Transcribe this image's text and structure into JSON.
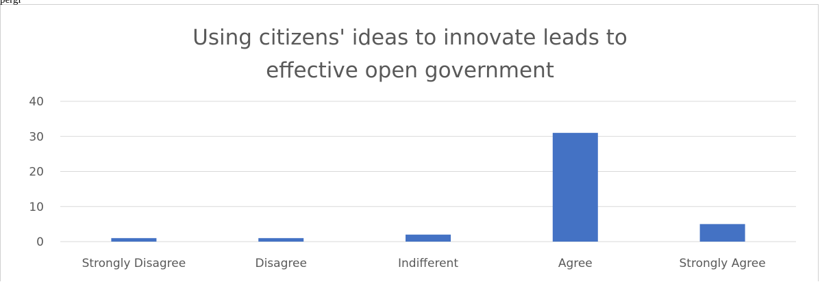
{
  "page_top_text": "         pergi",
  "chart_data": {
    "type": "bar",
    "title": "Using citizens' ideas to innovate leads to effective open government",
    "title_lines": [
      "Using citizens' ideas to innovate leads to",
      "effective open government"
    ],
    "categories": [
      "Strongly Disagree",
      "Disagree",
      "Indifferent",
      "Agree",
      "Strongly Agree"
    ],
    "values": [
      1,
      1,
      2,
      31,
      5
    ],
    "ylim": [
      0,
      40
    ],
    "yticks": [
      0,
      10,
      20,
      30,
      40
    ],
    "xlabel": "",
    "ylabel": "",
    "grid": true,
    "legend": "none",
    "bar_color": "#4472C4",
    "grid_color": "#d9d9d9"
  }
}
